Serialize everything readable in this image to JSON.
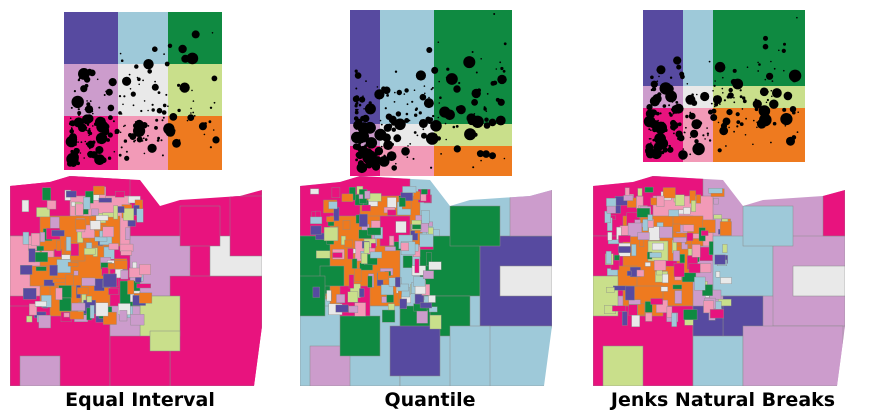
{
  "colors": {
    "cells": [
      [
        "#574aa0",
        "#9ec9d9",
        "#0f8a41"
      ],
      [
        "#cc9ccc",
        "#e9e9e9",
        "#c9df8b"
      ],
      [
        "#e8137e",
        "#f29ab7",
        "#ee7a1f"
      ]
    ],
    "boundary": "#8a8a8a",
    "dots": "#000000"
  },
  "panels": [
    {
      "caption": "Equal Interval",
      "scheme": "equal-interval",
      "left": 10
    },
    {
      "caption": "Quantile",
      "scheme": "quantile",
      "left": 300
    },
    {
      "caption": "Jenks Natural Breaks",
      "scheme": "jenks",
      "left": 593
    }
  ]
}
